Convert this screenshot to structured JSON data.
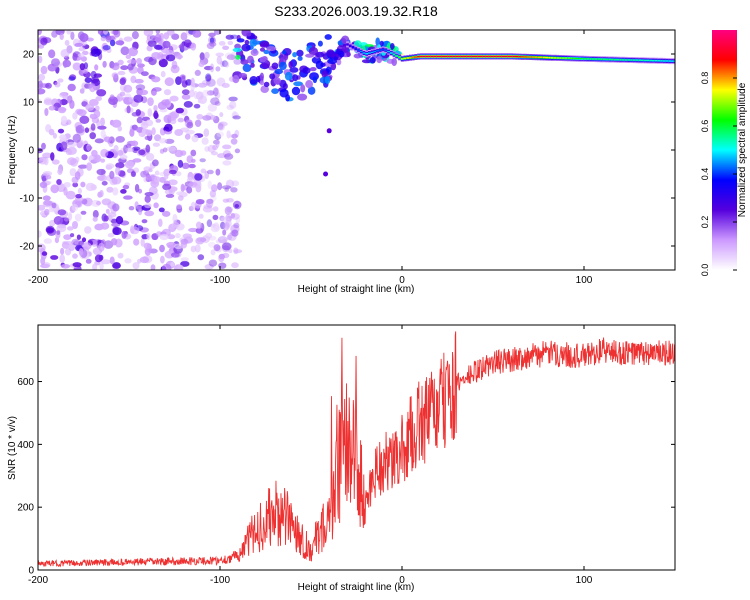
{
  "title": "S233.2026.003.19.32.R18",
  "chart_data": [
    {
      "type": "heatmap",
      "xlabel": "Height of straight line (km)",
      "ylabel": "Frequency (Hz)",
      "xlim": [
        -200,
        150
      ],
      "ylim": [
        -25,
        25
      ],
      "x_ticks": [
        -200,
        -100,
        0,
        100
      ],
      "x_tick_labels": [
        "-200",
        "-100",
        "0",
        "100"
      ],
      "y_ticks": [
        -20,
        -10,
        0,
        10,
        20
      ],
      "y_tick_labels": [
        "-20",
        "-10",
        "0",
        "10",
        "20"
      ],
      "colorbar": {
        "label": "Normalized spectral amplitude",
        "range": [
          0,
          1
        ],
        "ticks": [
          0.0,
          0.2,
          0.4,
          0.6,
          0.8
        ],
        "tick_labels": [
          "0.0",
          "0.2",
          "0.4",
          "0.6",
          "0.8"
        ],
        "colors": [
          "#ffffff",
          "#cc99ff",
          "#5500dd",
          "#0000ff",
          "#00ffff",
          "#00ff00",
          "#ffff00",
          "#ff0000",
          "#ff0080"
        ]
      },
      "features": [
        {
          "name": "noise region",
          "x_range": [
            -200,
            -90
          ],
          "y_range": [
            -25,
            25
          ],
          "amplitude": 0.1
        },
        {
          "name": "tone track",
          "points": [
            {
              "x": -90,
              "y": 21,
              "amp": 0.25
            },
            {
              "x": -80,
              "y": 18,
              "amp": 0.3
            },
            {
              "x": -70,
              "y": 17,
              "amp": 0.3
            },
            {
              "x": -60,
              "y": 15,
              "amp": 0.3
            },
            {
              "x": -50,
              "y": 17,
              "amp": 0.3
            },
            {
              "x": -35,
              "y": 20,
              "amp": 0.3
            },
            {
              "x": -30,
              "y": 22,
              "amp": 0.3
            },
            {
              "x": -20,
              "y": 20,
              "amp": 0.5
            },
            {
              "x": -10,
              "y": 21,
              "amp": 0.4
            },
            {
              "x": 0,
              "y": 19,
              "amp": 0.7
            },
            {
              "x": 10,
              "y": 19.5,
              "amp": 0.9
            },
            {
              "x": 60,
              "y": 19.5,
              "amp": 0.9
            },
            {
              "x": 100,
              "y": 19,
              "amp": 0.6
            },
            {
              "x": 150,
              "y": 18.5,
              "amp": 0.5
            }
          ]
        },
        {
          "name": "isolated point",
          "x": -40,
          "y": 4
        },
        {
          "name": "isolated point",
          "x": -42,
          "y": -5
        }
      ]
    },
    {
      "type": "line",
      "xlabel": "Height of straight line (km)",
      "ylabel": "SNR (10 * v/v)",
      "xlim": [
        -200,
        150
      ],
      "ylim": [
        0,
        780
      ],
      "x_ticks": [
        -200,
        -100,
        0,
        100
      ],
      "x_tick_labels": [
        "-200",
        "-100",
        "0",
        "100"
      ],
      "y_ticks": [
        0,
        200,
        400,
        600
      ],
      "y_tick_labels": [
        "0",
        "200",
        "400",
        "600"
      ],
      "color": "#ee3030",
      "series": [
        {
          "x": [
            -200,
            -150,
            -100,
            -90,
            -80,
            -70,
            -60,
            -55,
            -50,
            -45,
            -40,
            -35,
            -32,
            -30,
            -28,
            -25,
            -20,
            -15,
            -10,
            -5,
            0,
            5,
            10,
            15,
            20,
            25,
            30,
            40,
            50,
            60,
            80,
            100,
            110,
            120,
            140,
            150
          ],
          "values": [
            20,
            25,
            30,
            45,
            130,
            180,
            150,
            100,
            60,
            130,
            150,
            300,
            420,
            520,
            420,
            320,
            200,
            320,
            340,
            340,
            380,
            430,
            470,
            490,
            510,
            550,
            590,
            630,
            660,
            670,
            690,
            680,
            700,
            690,
            690,
            690
          ]
        }
      ]
    }
  ]
}
